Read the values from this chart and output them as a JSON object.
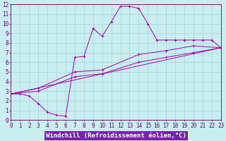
{
  "xlabel": "Windchill (Refroidissement éolien,°C)",
  "xlim": [
    0,
    23
  ],
  "ylim": [
    0,
    12
  ],
  "xticks": [
    0,
    1,
    2,
    3,
    4,
    5,
    6,
    7,
    8,
    9,
    10,
    11,
    12,
    13,
    14,
    15,
    16,
    17,
    18,
    19,
    20,
    21,
    22,
    23
  ],
  "yticks": [
    0,
    1,
    2,
    3,
    4,
    5,
    6,
    7,
    8,
    9,
    10,
    11,
    12
  ],
  "bg_color": "#c8eef0",
  "line_color": "#aa00aa",
  "xlabel_bg": "#8844aa",
  "curve1_x": [
    0,
    1,
    2,
    3,
    4,
    5,
    6,
    7,
    8,
    9,
    10,
    11,
    12,
    13,
    14,
    15,
    16,
    17,
    18,
    19,
    20,
    21,
    22,
    23
  ],
  "curve1_y": [
    2.7,
    2.7,
    2.5,
    1.7,
    0.8,
    0.5,
    0.4,
    6.5,
    6.6,
    9.5,
    8.7,
    10.2,
    11.8,
    11.8,
    11.6,
    10.0,
    8.3,
    8.3,
    8.3,
    8.3,
    8.3,
    8.3,
    8.3,
    7.5
  ],
  "curve2_x": [
    0,
    23
  ],
  "curve2_y": [
    2.7,
    7.5
  ],
  "curve3_x": [
    0,
    3,
    7,
    10,
    14,
    17,
    20,
    23
  ],
  "curve3_y": [
    2.7,
    3.0,
    4.5,
    4.8,
    6.0,
    6.5,
    7.0,
    7.5
  ],
  "curve4_x": [
    0,
    3,
    7,
    10,
    14,
    17,
    20,
    23
  ],
  "curve4_y": [
    2.7,
    3.3,
    5.0,
    5.2,
    6.8,
    7.2,
    7.7,
    7.5
  ],
  "tick_fontsize": 5.5,
  "xlabel_fontsize": 6.5
}
